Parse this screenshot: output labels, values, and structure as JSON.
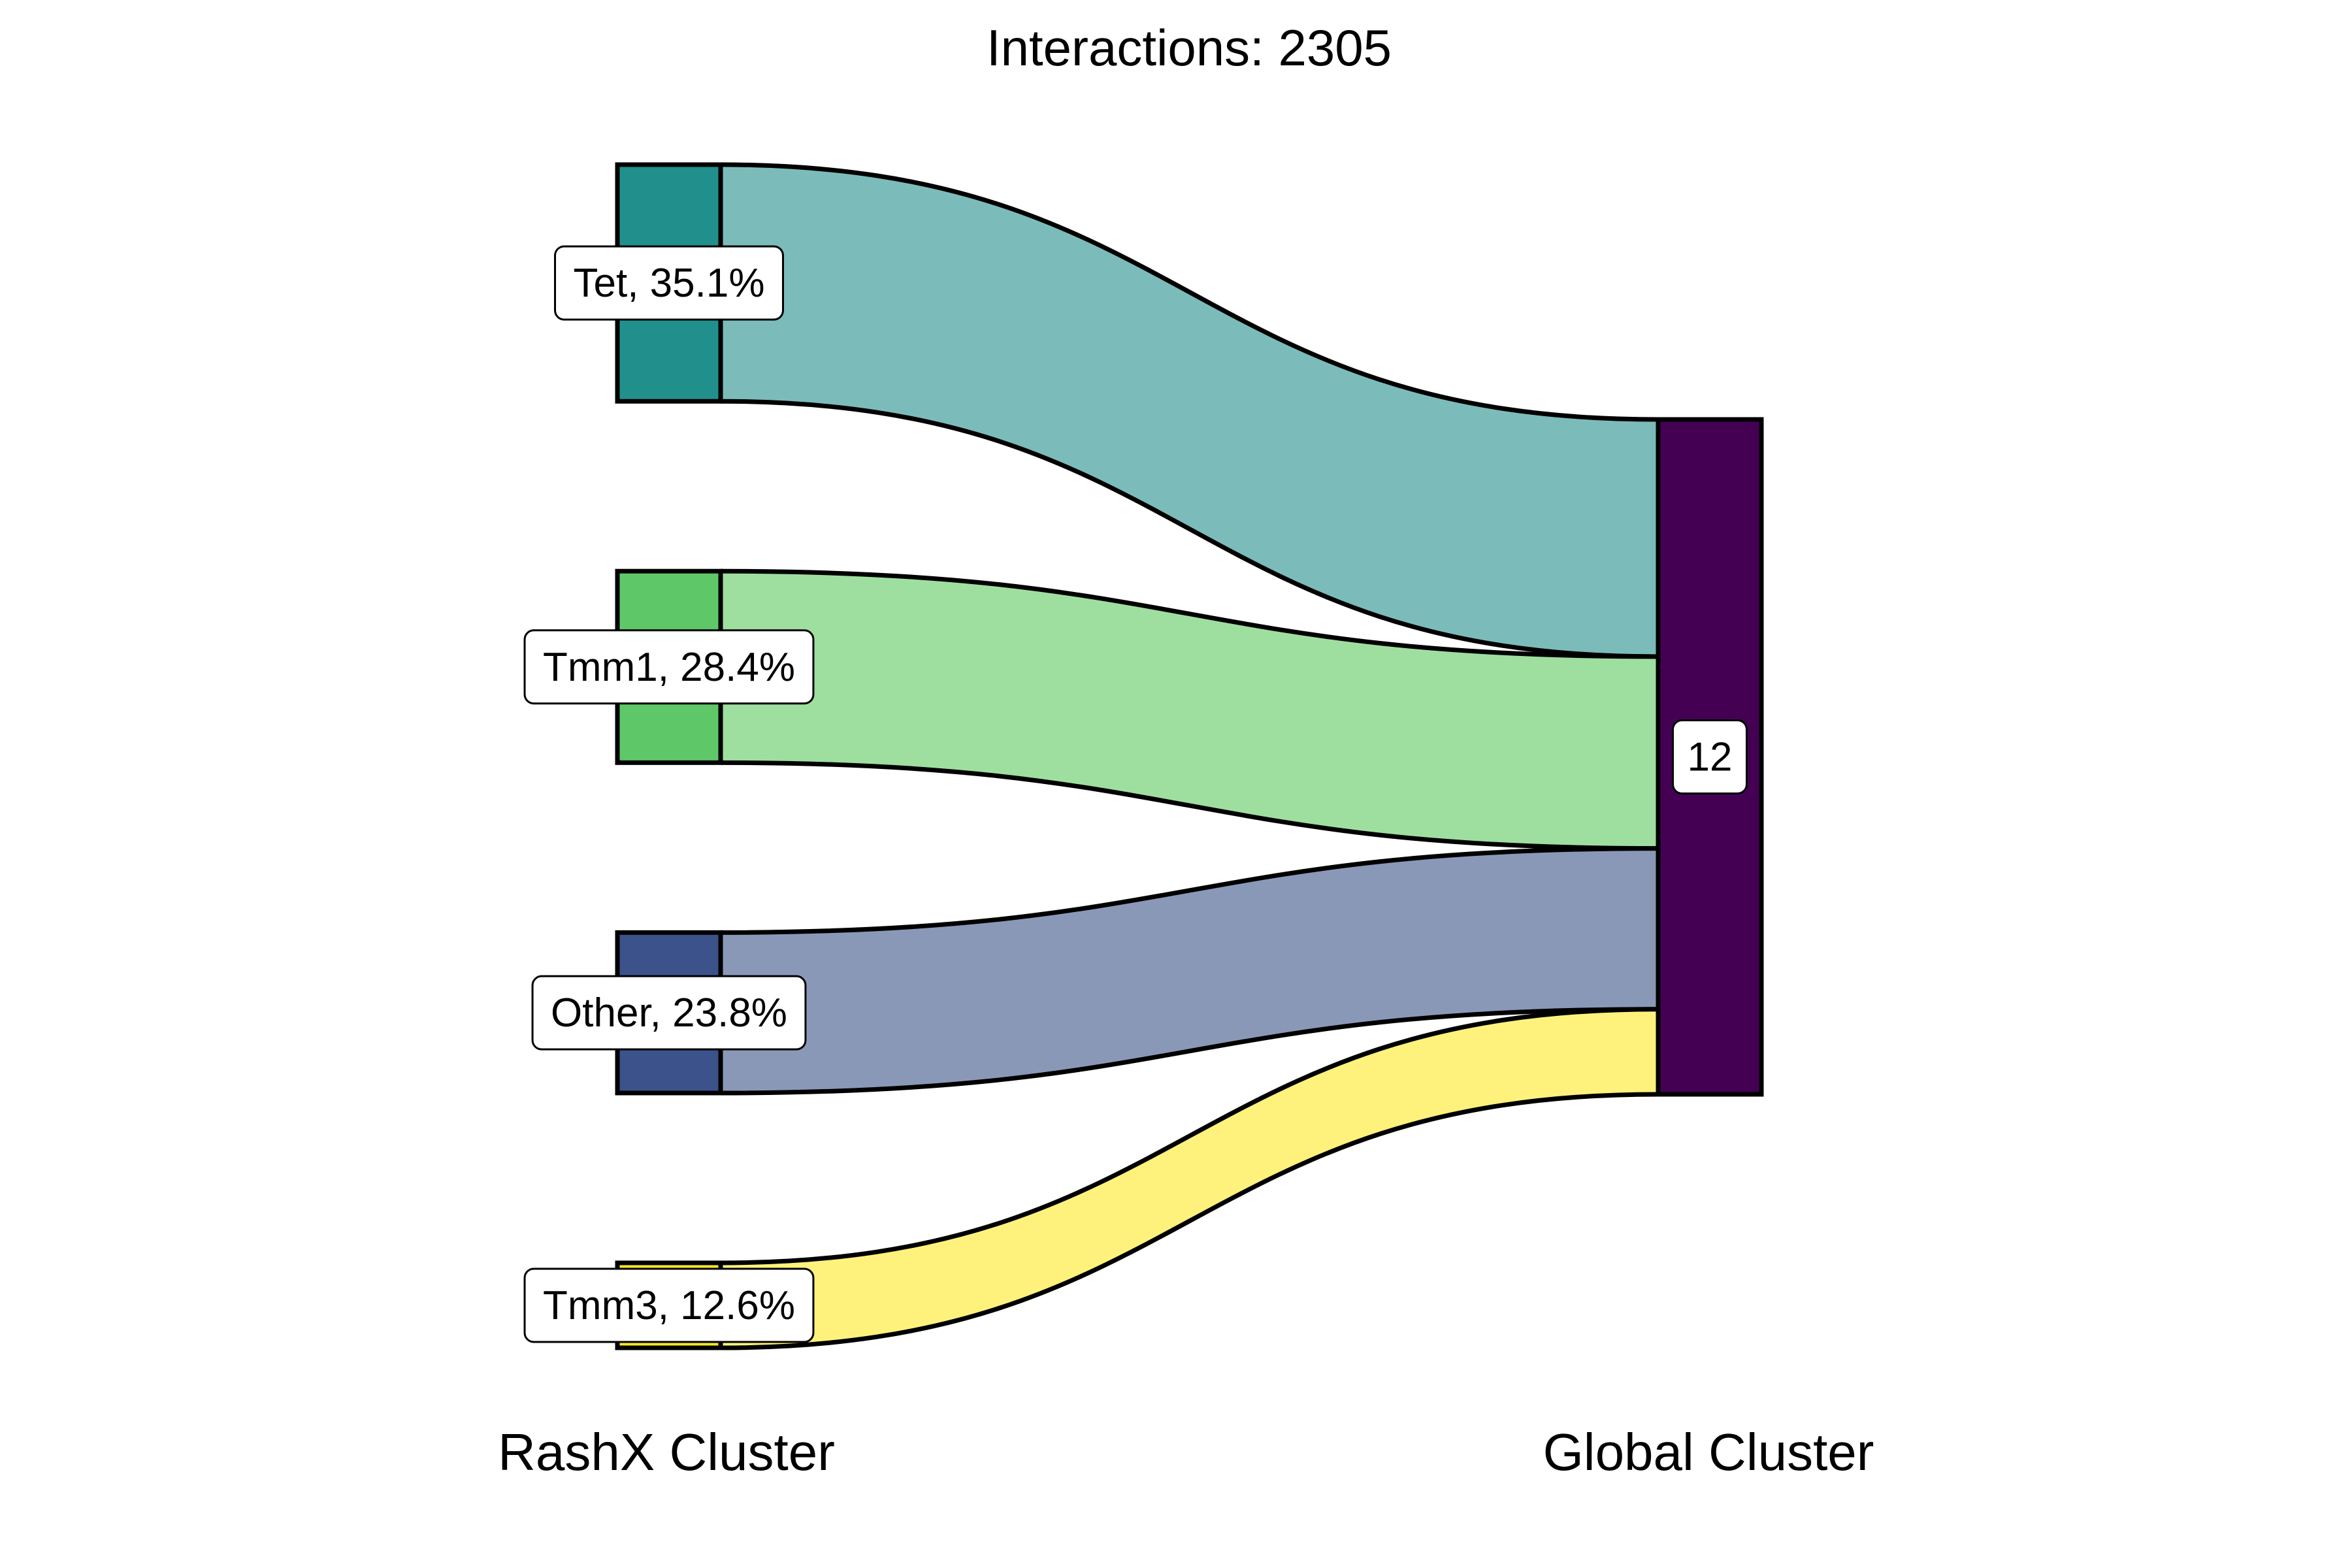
{
  "chart_data": {
    "type": "sankey",
    "title": "Interactions: 2305",
    "stages": [
      "RashX Cluster",
      "Global Cluster"
    ],
    "sources": [
      {
        "name": "Tet",
        "percent": 35.1,
        "label": "Tet, 35.1%",
        "node_color": "#21908C",
        "flow_color": "#7BBCBB"
      },
      {
        "name": "Tmm1",
        "percent": 28.4,
        "label": "Tmm1, 28.4%",
        "node_color": "#5EC868",
        "flow_color": "#9EDFA0"
      },
      {
        "name": "Other",
        "percent": 23.8,
        "label": "Other, 23.8%",
        "node_color": "#3B528B",
        "flow_color": "#8A98B8"
      },
      {
        "name": "Tmm3",
        "percent": 12.6,
        "label": "Tmm3, 12.6%",
        "node_color": "#FDE725",
        "flow_color": "#FFF27C"
      }
    ],
    "targets": [
      {
        "name": "12",
        "label": "12",
        "node_color": "#440154"
      }
    ],
    "flows": [
      {
        "from": "Tet",
        "to": "12",
        "percent": 35.1
      },
      {
        "from": "Tmm1",
        "to": "12",
        "percent": 28.4
      },
      {
        "from": "Other",
        "to": "12",
        "percent": 23.8
      },
      {
        "from": "Tmm3",
        "to": "12",
        "percent": 12.6
      }
    ],
    "legend": "none",
    "grid": false
  }
}
